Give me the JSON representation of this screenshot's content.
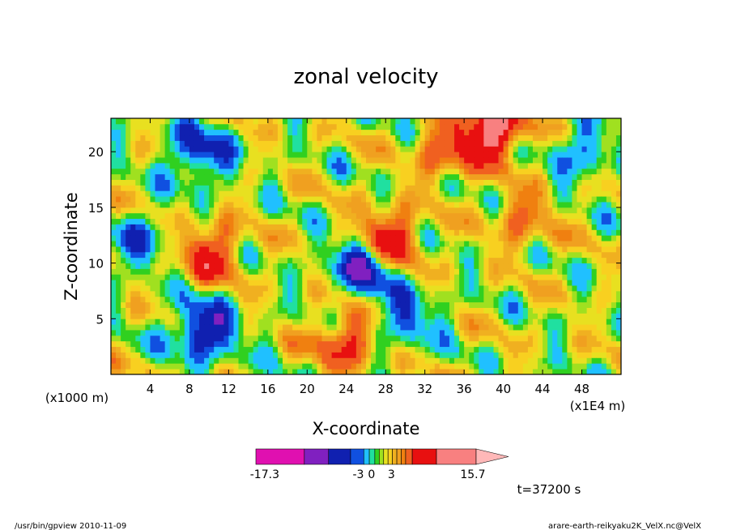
{
  "chart_data": {
    "type": "heatmap",
    "title": "zonal velocity",
    "xlabel": "X-coordinate",
    "ylabel": "Z-coordinate",
    "x_unit_left": "(x1000 m)",
    "x_unit_right": "(x1E4 m)",
    "xlim": [
      0,
      52
    ],
    "ylim": [
      0,
      23
    ],
    "xticks": [
      4,
      8,
      12,
      16,
      20,
      24,
      28,
      32,
      36,
      40,
      44,
      48
    ],
    "yticks": [
      5,
      10,
      15,
      20
    ],
    "colorbar": {
      "levels": [
        -17.3,
        -15,
        -10,
        -7,
        -5,
        -3,
        -2,
        -1,
        0,
        1,
        2,
        3,
        4,
        5,
        7,
        10,
        15.7
      ],
      "colors": [
        "#e010b0",
        "#8020c0",
        "#1020b0",
        "#1050e0",
        "#20c0ff",
        "#20e0a0",
        "#30d020",
        "#a0e020",
        "#e8e020",
        "#f8d020",
        "#f0b020",
        "#f0a020",
        "#f08010",
        "#f06020",
        "#e81010",
        "#f88080"
      ],
      "tick_labels": [
        "-17.3",
        "-3",
        "0",
        "3",
        "15.7"
      ],
      "extend_color": "#ffb8b8"
    },
    "time_label": "t=37200 s",
    "features": [
      {
        "name": "negative core",
        "x": 26,
        "z": 10,
        "value": -12
      },
      {
        "name": "negative column",
        "x": 9.5,
        "z": 4,
        "value": -10
      },
      {
        "name": "positive streak",
        "x": 28,
        "z": 12,
        "value": 12
      },
      {
        "name": "positive streak",
        "x": 10,
        "z": 11,
        "value": 8
      },
      {
        "name": "positive pool",
        "x": 24,
        "z": 3,
        "value": 8
      },
      {
        "name": "negative pool",
        "x": 9,
        "z": 20,
        "value": -8
      },
      {
        "name": "negative pool",
        "x": 3,
        "z": 12,
        "value": -5
      },
      {
        "name": "positive pool",
        "x": 34,
        "z": 20,
        "value": 6
      },
      {
        "name": "positive peak",
        "x": 39,
        "z": 22,
        "value": 12
      },
      {
        "name": "negative pool",
        "x": 30,
        "z": 5,
        "value": -6
      },
      {
        "name": "positive pool",
        "x": 42,
        "z": 14,
        "value": 5
      },
      {
        "name": "negative pool",
        "x": 48,
        "z": 20,
        "value": -5
      }
    ]
  },
  "footer": {
    "left": "/usr/bin/gpview  2010-11-09",
    "right": "arare-earth-reikyaku2K_VelX.nc@VelX"
  }
}
